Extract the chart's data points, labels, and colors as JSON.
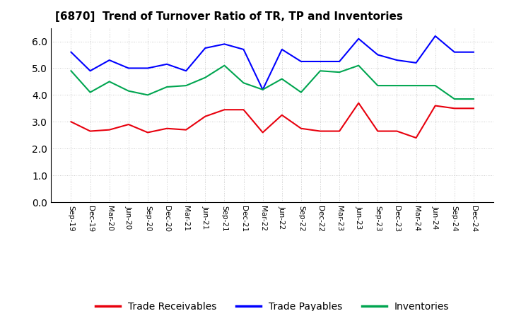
{
  "title": "[6870]  Trend of Turnover Ratio of TR, TP and Inventories",
  "x_labels": [
    "Sep-19",
    "Dec-19",
    "Mar-20",
    "Jun-20",
    "Sep-20",
    "Dec-20",
    "Mar-21",
    "Jun-21",
    "Sep-21",
    "Dec-21",
    "Mar-22",
    "Jun-22",
    "Sep-22",
    "Dec-22",
    "Mar-23",
    "Jun-23",
    "Sep-23",
    "Dec-23",
    "Mar-24",
    "Jun-24",
    "Sep-24",
    "Dec-24"
  ],
  "trade_receivables": [
    3.0,
    2.65,
    2.7,
    2.9,
    2.6,
    2.75,
    2.7,
    3.2,
    3.45,
    3.45,
    2.6,
    3.25,
    2.75,
    2.65,
    2.65,
    3.7,
    2.65,
    2.65,
    2.4,
    3.6,
    3.5,
    3.5
  ],
  "trade_payables": [
    5.6,
    4.9,
    5.3,
    5.0,
    5.0,
    5.15,
    4.9,
    5.75,
    5.9,
    5.7,
    4.2,
    5.7,
    5.25,
    5.25,
    5.25,
    6.1,
    5.5,
    5.3,
    5.2,
    6.2,
    5.6,
    5.6
  ],
  "inventories": [
    4.9,
    4.1,
    4.5,
    4.15,
    4.0,
    4.3,
    4.35,
    4.65,
    5.1,
    4.45,
    4.2,
    4.6,
    4.1,
    4.9,
    4.85,
    5.1,
    4.35,
    4.35,
    4.35,
    4.35,
    3.85,
    3.85
  ],
  "tr_color": "#e8000d",
  "tp_color": "#0000ff",
  "inv_color": "#00a550",
  "ylim": [
    0.0,
    6.5
  ],
  "yticks": [
    0.0,
    1.0,
    2.0,
    3.0,
    4.0,
    5.0,
    6.0
  ],
  "legend_labels": [
    "Trade Receivables",
    "Trade Payables",
    "Inventories"
  ],
  "bg_color": "#ffffff",
  "grid_color": "#bbbbbb"
}
